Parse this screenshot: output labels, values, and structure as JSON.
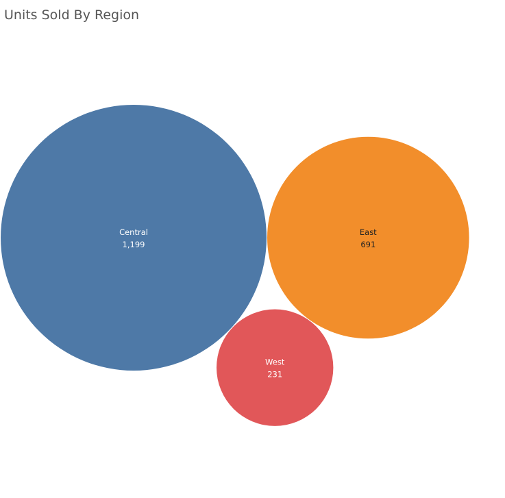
{
  "chart_data": {
    "type": "bubble",
    "title": "Units Sold By Region",
    "categories": [
      "Central",
      "East",
      "West"
    ],
    "values": [
      1199,
      691,
      231
    ],
    "value_labels": [
      "1,199",
      "691",
      "231"
    ],
    "colors": [
      "#4e79a7",
      "#f28e2b",
      "#e15759"
    ],
    "label_colors": [
      "#ffffff",
      "#222222",
      "#ffffff"
    ]
  }
}
